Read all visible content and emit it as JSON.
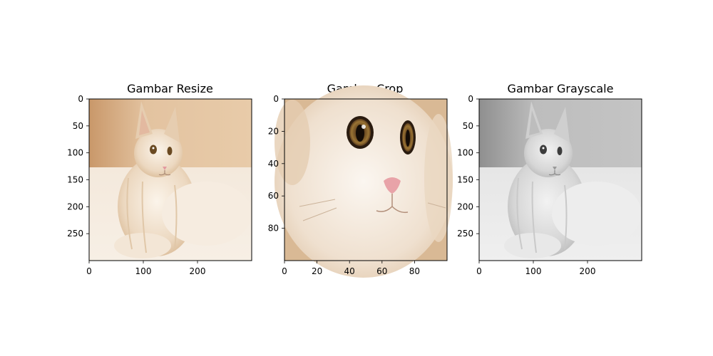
{
  "chart_data": [
    {
      "type": "image",
      "title": "Gambar Resize",
      "x_ticks": [
        0,
        100,
        200
      ],
      "y_ticks": [
        0,
        50,
        100,
        150,
        200,
        250
      ],
      "xlim": [
        0,
        300
      ],
      "ylim": [
        300,
        0
      ],
      "palette": "color",
      "image_subject": "cat-full-body"
    },
    {
      "type": "image",
      "title": "Gambar Crop",
      "x_ticks": [
        0,
        20,
        40,
        60,
        80
      ],
      "y_ticks": [
        0,
        20,
        40,
        60,
        80
      ],
      "xlim": [
        0,
        100
      ],
      "ylim": [
        100,
        0
      ],
      "palette": "color",
      "image_subject": "cat-face-closeup"
    },
    {
      "type": "image",
      "title": "Gambar Grayscale",
      "x_ticks": [
        0,
        100,
        200
      ],
      "y_ticks": [
        0,
        50,
        100,
        150,
        200,
        250
      ],
      "xlim": [
        0,
        300
      ],
      "ylim": [
        300,
        0
      ],
      "palette": "grayscale",
      "image_subject": "cat-full-body"
    }
  ]
}
